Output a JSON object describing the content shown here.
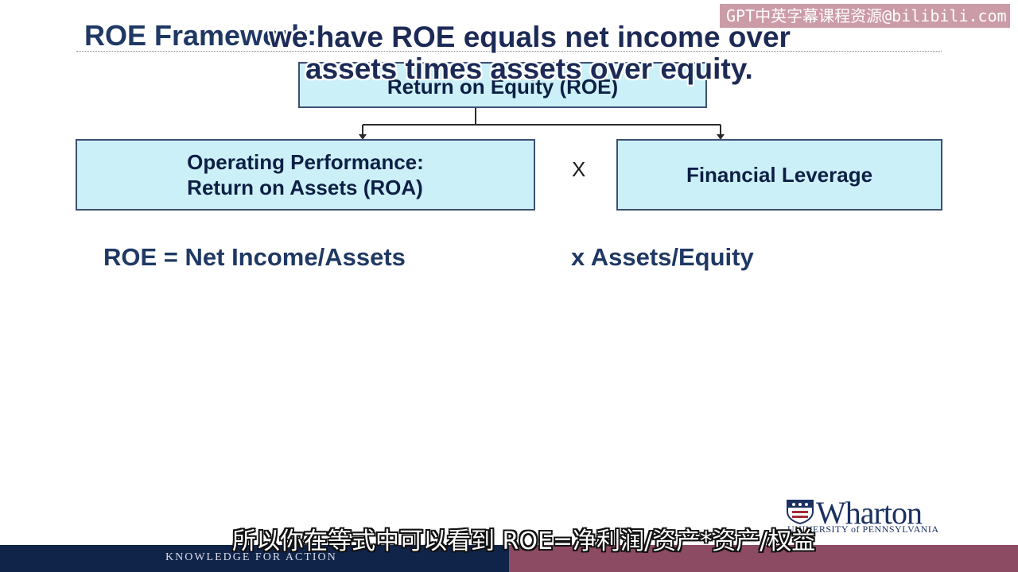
{
  "watermark": "GPT中英字幕课程资源@bilibili.com",
  "slide": {
    "title": "ROE Framework:",
    "boxes": {
      "roe": "Return on Equity (ROE)",
      "roa_line1": "Operating Performance:",
      "roa_line2": "Return on Assets (ROA)",
      "leverage": "Financial Leverage"
    },
    "times_symbol": "X",
    "formula_left": "ROE = Net Income/Assets",
    "formula_right": "x  Assets/Equity"
  },
  "subtitles": {
    "english_line1": "we have ROE equals net income over",
    "english_line2": "assets times assets over equity.",
    "chinese": "所以你在等式中可以看到 ROE=净利润/资产*资产/权益"
  },
  "logo": {
    "word": "Wharton",
    "university": "UNIVERSITY of PENNSYLVANIA"
  },
  "footer": {
    "tagline": "KNOWLEDGE FOR ACTION"
  },
  "colors": {
    "title": "#1f3864",
    "box_fill": "#ccf0f8",
    "box_border": "#3d4f73",
    "footer_left": "#102349",
    "footer_right": "#8c4a63"
  }
}
